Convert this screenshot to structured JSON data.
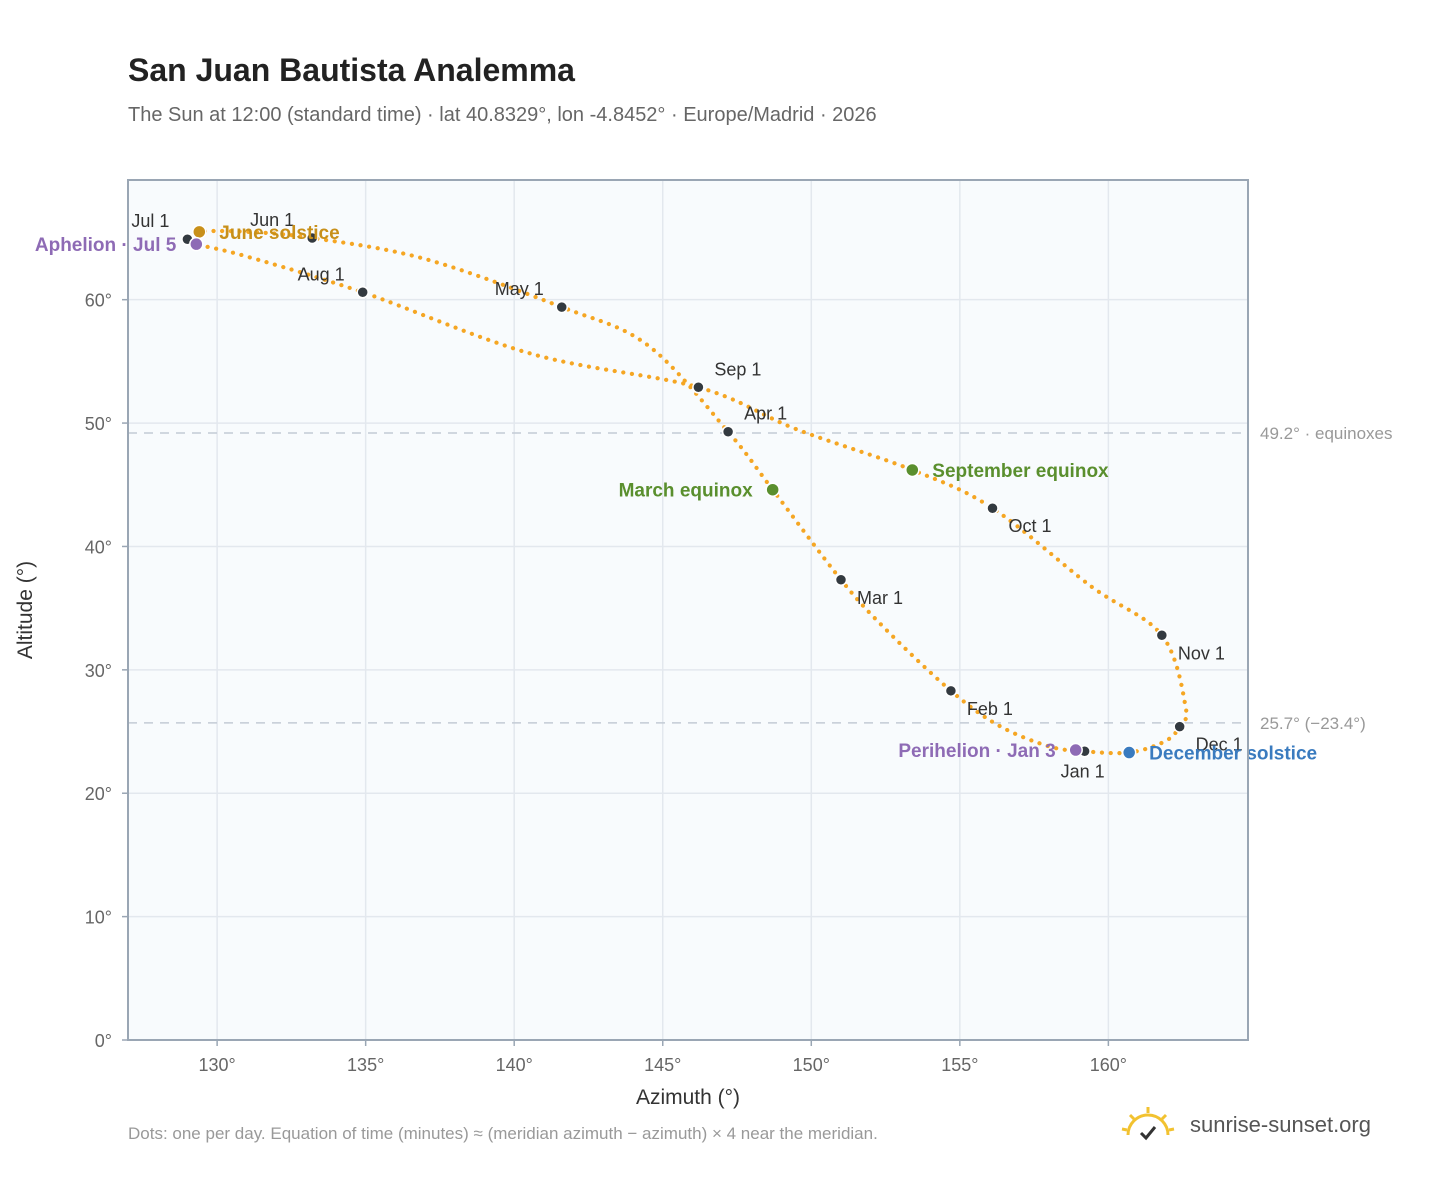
{
  "header": {
    "title": "San Juan Bautista Analemma",
    "subtitle": "The Sun at 12:00 (standard time) · lat 40.8329°, lon -4.8452° · Europe/Madrid · 2026"
  },
  "footer": {
    "note": "Dots: one per day. Equation of time (minutes) ≈ (meridian azimuth − azimuth) × 4 near the meridian.",
    "brand": "sunrise-sunset.org",
    "brand_icon": "sunrise-logo-icon"
  },
  "chart_data": {
    "type": "scatter",
    "xlabel": "Azimuth (°)",
    "ylabel": "Altitude (°)",
    "xlim": [
      127,
      164.7
    ],
    "ylim": [
      0,
      69.7
    ],
    "x_ticks": [
      130,
      135,
      140,
      145,
      150,
      155,
      160
    ],
    "x_tick_labels": [
      "130°",
      "135°",
      "140°",
      "145°",
      "150°",
      "155°",
      "160°"
    ],
    "y_ticks": [
      0,
      10,
      20,
      30,
      40,
      50,
      60
    ],
    "y_tick_labels": [
      "0°",
      "10°",
      "20°",
      "30°",
      "40°",
      "50°",
      "60°"
    ],
    "grid": true,
    "curve_color": "#f5a623",
    "path": [
      [
        159.2,
        23.4
      ],
      [
        160.7,
        23.3
      ],
      [
        161.9,
        24.2
      ],
      [
        162.4,
        25.4
      ],
      [
        162.6,
        27.0
      ],
      [
        161.8,
        32.8
      ],
      [
        159.4,
        36.8
      ],
      [
        156.1,
        43.1
      ],
      [
        153.4,
        46.2
      ],
      [
        149.5,
        49.5
      ],
      [
        146.2,
        52.9
      ],
      [
        140.6,
        55.6
      ],
      [
        134.9,
        60.6
      ],
      [
        131.0,
        63.5
      ],
      [
        129.3,
        64.5
      ],
      [
        129.0,
        64.9
      ],
      [
        129.4,
        65.5
      ],
      [
        131.0,
        65.5
      ],
      [
        133.2,
        65.0
      ],
      [
        137.0,
        63.3
      ],
      [
        141.6,
        59.4
      ],
      [
        144.5,
        56.3
      ],
      [
        147.2,
        49.3
      ],
      [
        148.7,
        44.6
      ],
      [
        151.0,
        37.3
      ],
      [
        152.5,
        33.3
      ],
      [
        154.7,
        28.3
      ],
      [
        156.3,
        25.5
      ],
      [
        158.0,
        23.8
      ],
      [
        159.2,
        23.4
      ]
    ],
    "monthly_points": [
      {
        "label": "Jan 1",
        "x": 159.2,
        "y": 23.4,
        "anchor": "below"
      },
      {
        "label": "Feb 1",
        "x": 154.7,
        "y": 28.3,
        "anchor": "right"
      },
      {
        "label": "Mar 1",
        "x": 151.0,
        "y": 37.3,
        "anchor": "right"
      },
      {
        "label": "Apr 1",
        "x": 147.2,
        "y": 49.3,
        "anchor": "upper-right"
      },
      {
        "label": "May 1",
        "x": 141.6,
        "y": 59.4,
        "anchor": "upper-left"
      },
      {
        "label": "Jun 1",
        "x": 133.2,
        "y": 65.0,
        "anchor": "upper-left"
      },
      {
        "label": "Jul 1",
        "x": 129.0,
        "y": 64.9,
        "anchor": "upper-left"
      },
      {
        "label": "Aug 1",
        "x": 134.9,
        "y": 60.6,
        "anchor": "upper-left"
      },
      {
        "label": "Sep 1",
        "x": 146.2,
        "y": 52.9,
        "anchor": "upper-right"
      },
      {
        "label": "Oct 1",
        "x": 156.1,
        "y": 43.1,
        "anchor": "right"
      },
      {
        "label": "Nov 1",
        "x": 161.8,
        "y": 32.8,
        "anchor": "right"
      },
      {
        "label": "Dec 1",
        "x": 162.4,
        "y": 25.4,
        "anchor": "lower-right"
      }
    ],
    "events": [
      {
        "label": "June solstice",
        "x": 129.4,
        "y": 65.5,
        "color": "#c8901a",
        "anchor": "right"
      },
      {
        "label": "Aphelion · Jul 5",
        "x": 129.3,
        "y": 64.5,
        "color": "#8e6bb5",
        "anchor": "left"
      },
      {
        "label": "March equinox",
        "x": 148.7,
        "y": 44.6,
        "color": "#5a8f2e",
        "anchor": "left"
      },
      {
        "label": "September equinox",
        "x": 153.4,
        "y": 46.2,
        "color": "#5a8f2e",
        "anchor": "right"
      },
      {
        "label": "Perihelion · Jan 3",
        "x": 158.9,
        "y": 23.5,
        "color": "#8e6bb5",
        "anchor": "left"
      },
      {
        "label": "December solstice",
        "x": 160.7,
        "y": 23.3,
        "color": "#3a7bbf",
        "anchor": "right"
      }
    ],
    "reference_lines": [
      {
        "y": 49.2,
        "label": "49.2° · equinoxes"
      },
      {
        "y": 25.7,
        "label": "25.7° (−23.4°)"
      }
    ]
  }
}
